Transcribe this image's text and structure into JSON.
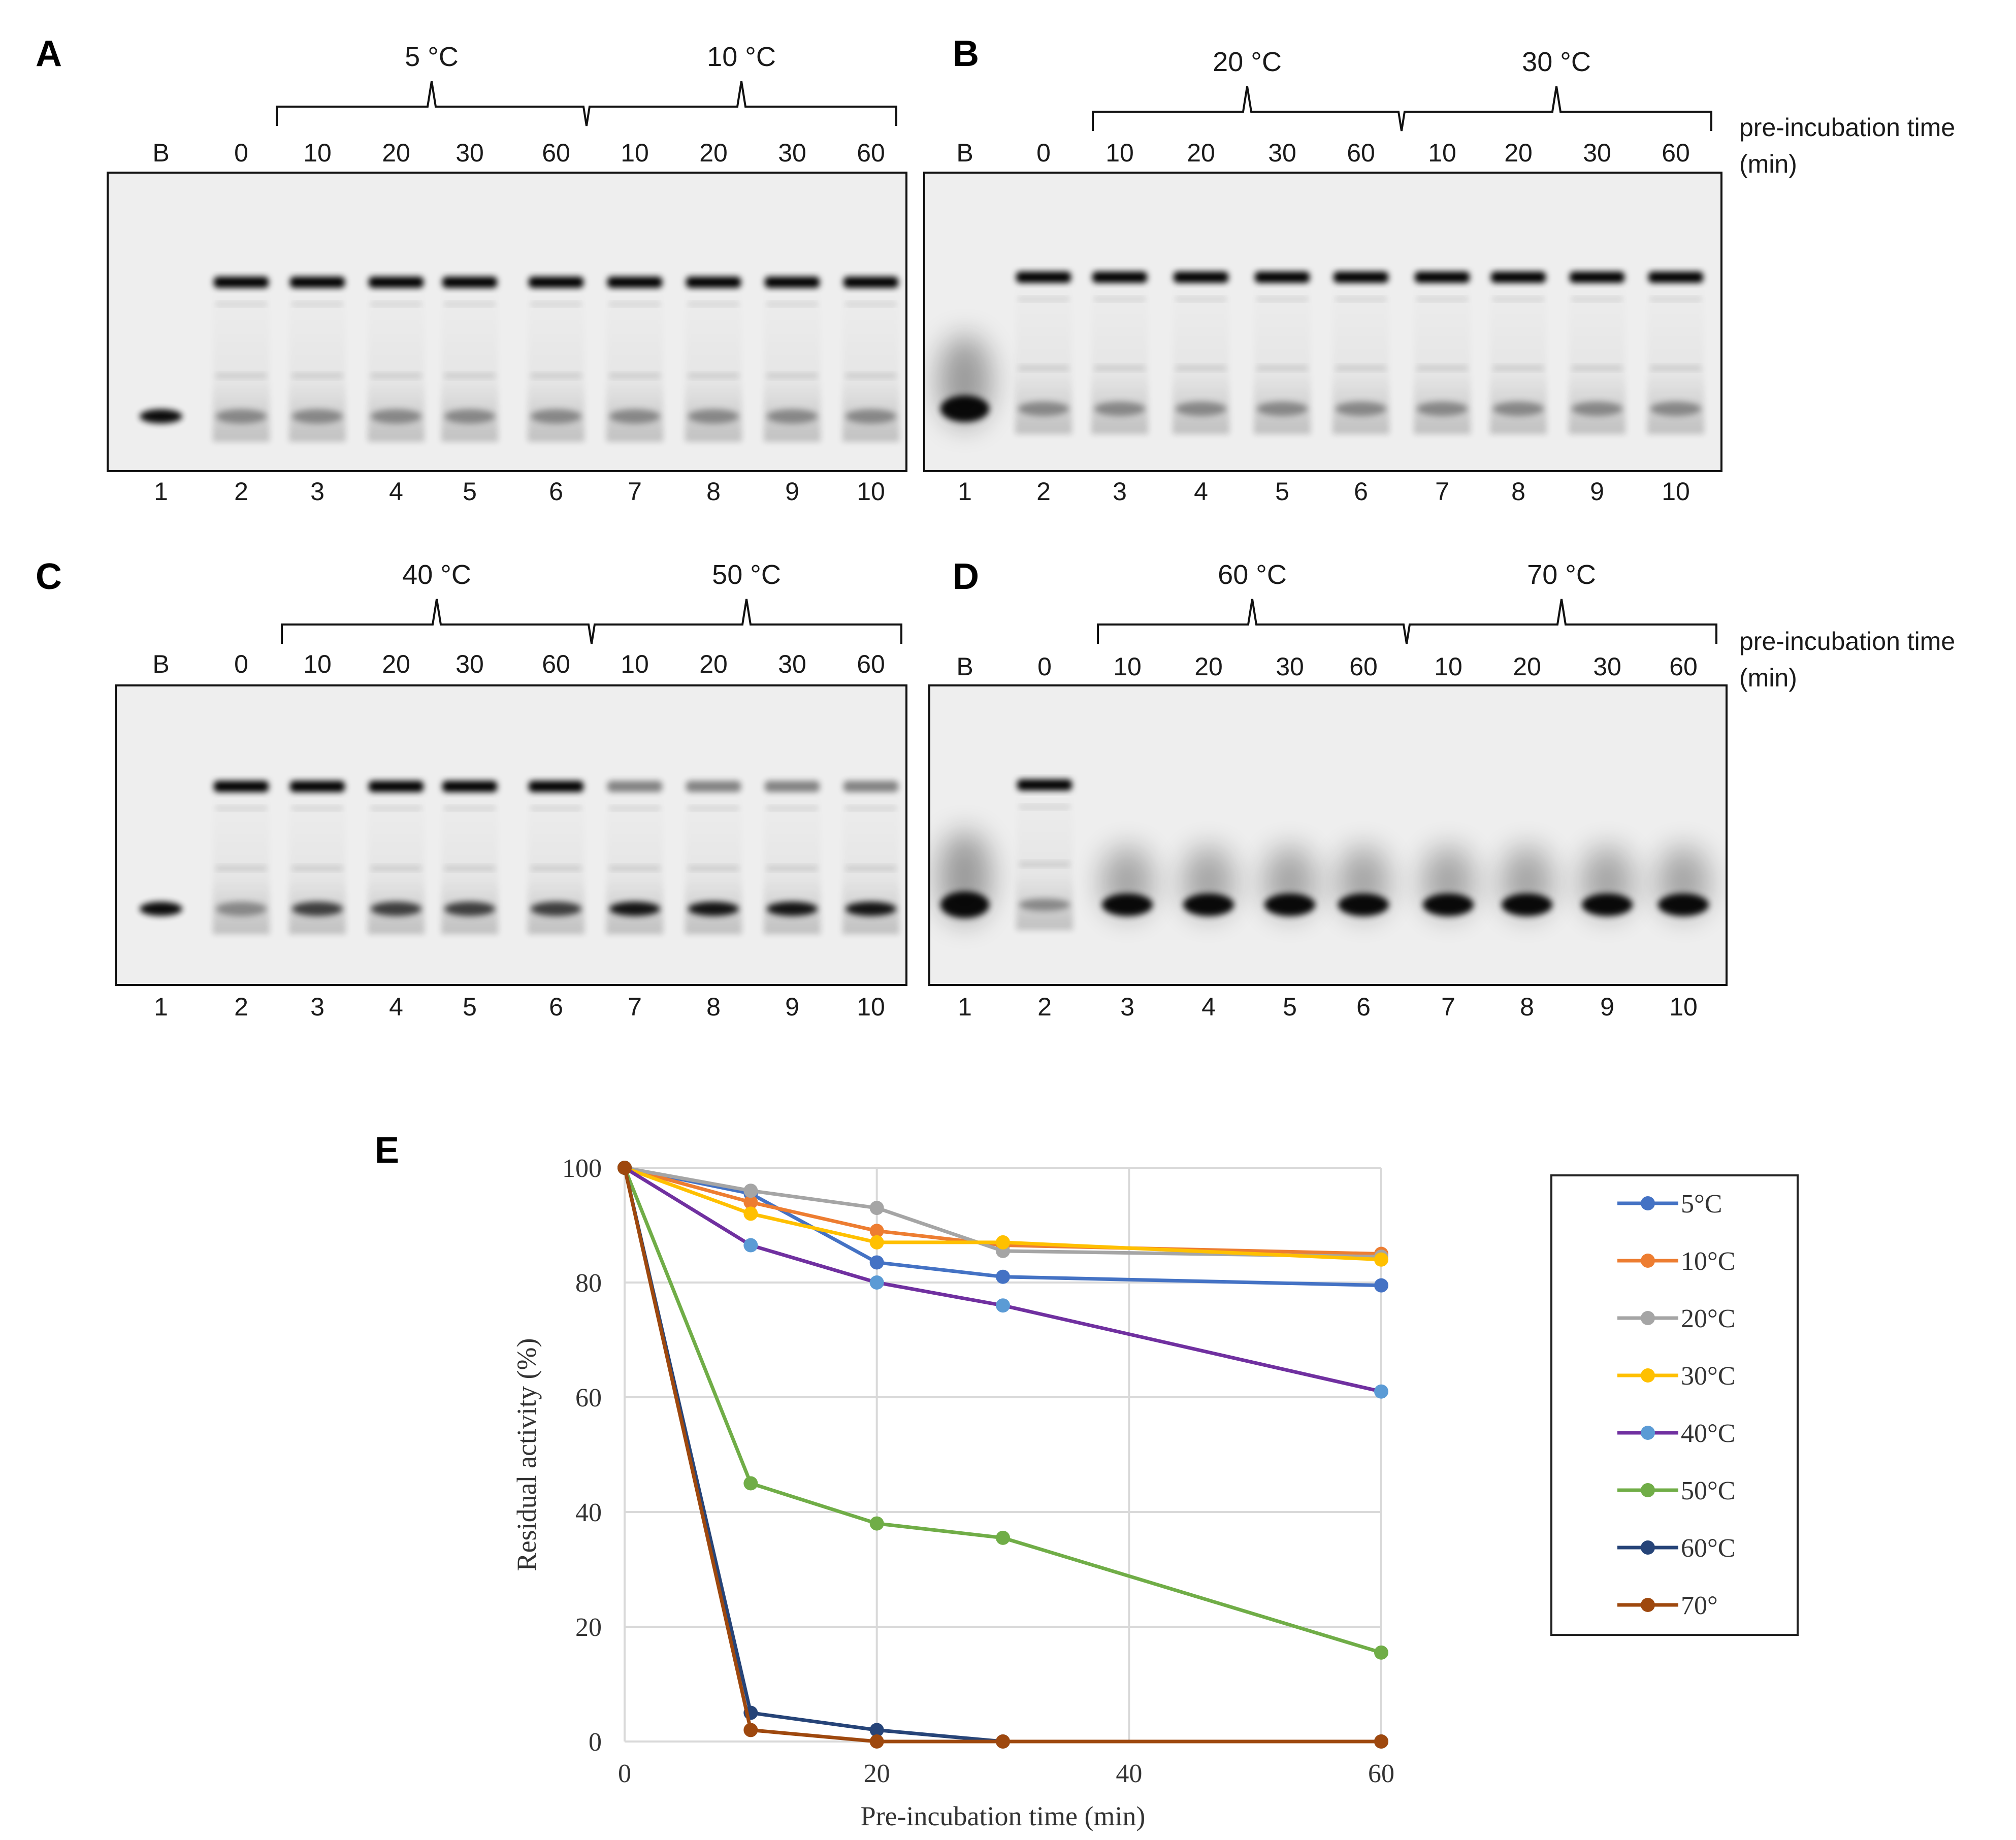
{
  "gels": [
    {
      "letter": "A",
      "temps": [
        "5 °C",
        "10 °C"
      ],
      "left_labels": [
        "B",
        "0"
      ],
      "time_labels": [
        "10",
        "20",
        "30",
        "60",
        "10",
        "20",
        "30",
        "60"
      ],
      "lanes": [
        "1",
        "2",
        "3",
        "4",
        "5",
        "6",
        "7",
        "8",
        "9",
        "10"
      ],
      "show_time_caption": false
    },
    {
      "letter": "B",
      "temps": [
        "20 °C",
        "30 °C"
      ],
      "left_labels": [
        "B",
        "0"
      ],
      "time_labels": [
        "10",
        "20",
        "30",
        "60",
        "10",
        "20",
        "30",
        "60"
      ],
      "lanes": [
        "1",
        "2",
        "3",
        "4",
        "5",
        "6",
        "7",
        "8",
        "9",
        "10"
      ],
      "show_time_caption": true
    },
    {
      "letter": "C",
      "temps": [
        "40 °C",
        "50 °C"
      ],
      "left_labels": [
        "B",
        "0"
      ],
      "time_labels": [
        "10",
        "20",
        "30",
        "60",
        "10",
        "20",
        "30",
        "60"
      ],
      "lanes": [
        "1",
        "2",
        "3",
        "4",
        "5",
        "6",
        "7",
        "8",
        "9",
        "10"
      ],
      "show_time_caption": false
    },
    {
      "letter": "D",
      "temps": [
        "60 °C",
        "70 °C"
      ],
      "left_labels": [
        "B",
        "0"
      ],
      "time_labels": [
        "10",
        "20",
        "30",
        "60",
        "10",
        "20",
        "30",
        "60"
      ],
      "lanes": [
        "1",
        "2",
        "3",
        "4",
        "5",
        "6",
        "7",
        "8",
        "9",
        "10"
      ],
      "show_time_caption": true
    }
  ],
  "time_caption": [
    "pre-incubation time",
    "(min)"
  ],
  "chart_panel_letter": "E",
  "chart_data": {
    "type": "line",
    "title": "",
    "xlabel": "Pre-incubation time (min)",
    "ylabel": "Residual activity (%)",
    "xlim": [
      0,
      60
    ],
    "ylim": [
      0,
      100
    ],
    "xticks": [
      0,
      20,
      40,
      60
    ],
    "yticks": [
      0,
      20,
      40,
      60,
      80,
      100
    ],
    "grid": true,
    "legend_position": "right",
    "x": [
      0,
      10,
      20,
      30,
      60
    ],
    "series": [
      {
        "name": "5°C",
        "color": "#4472C4",
        "values": [
          100,
          95.5,
          83.5,
          81,
          79.5
        ]
      },
      {
        "name": "10°C",
        "color": "#ED7D31",
        "values": [
          100,
          94,
          89,
          86.5,
          85
        ]
      },
      {
        "name": "20°C",
        "color": "#A5A5A5",
        "values": [
          100,
          96,
          93,
          85.5,
          84.5
        ]
      },
      {
        "name": "30°C",
        "color": "#FFC000",
        "values": [
          100,
          92,
          87,
          87,
          84
        ]
      },
      {
        "name": "40°C",
        "color": "#7030A0",
        "marker_color": "#5B9BD5",
        "values": [
          100,
          86.5,
          80,
          76,
          61
        ]
      },
      {
        "name": "50°C",
        "color": "#70AD47",
        "values": [
          100,
          45,
          38,
          35.5,
          15.5
        ]
      },
      {
        "name": "60°C",
        "color": "#264478",
        "values": [
          100,
          5,
          2,
          0,
          0
        ]
      },
      {
        "name": "70°",
        "color": "#9E480E",
        "values": [
          100,
          2,
          0,
          0,
          0
        ]
      }
    ]
  }
}
